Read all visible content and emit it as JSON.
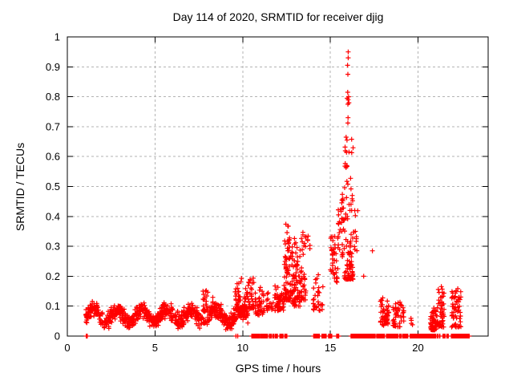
{
  "window": {
    "background": "#ffffff"
  },
  "chart_data": {
    "type": "scatter",
    "title": "Day 114 of 2020, SRMTID for receiver djig",
    "xlabel": "GPS time / hours",
    "ylabel": "SRMTID / TECUs",
    "xlim": [
      0,
      24
    ],
    "ylim": [
      0,
      1
    ],
    "xticks": [
      0,
      5,
      10,
      15,
      20
    ],
    "yticks": [
      0,
      0.1,
      0.2,
      0.3,
      0.4,
      0.5,
      0.6,
      0.7,
      0.8,
      0.9,
      1
    ],
    "grid": true,
    "legend": "none",
    "marker": "plus",
    "marker_color": "#ff0000",
    "axis_color": "#000000",
    "grid_color": "#b3b3b3",
    "seed": 114,
    "bands": [
      {
        "type": "wave",
        "t": [
          1.05,
          10.3
        ],
        "n": 800,
        "base": 0.068,
        "amp": 0.021,
        "freq": 4.5,
        "phase": 1.2,
        "noise": 0.026,
        "clamp": [
          0.022,
          0.135
        ]
      },
      {
        "type": "blob",
        "t": [
          7.7,
          8.3
        ],
        "n": 35,
        "y": [
          0.08,
          0.155
        ],
        "skew": 1.6
      },
      {
        "type": "blob",
        "t": [
          9.55,
          9.95
        ],
        "n": 35,
        "y": [
          0.08,
          0.2
        ],
        "skew": 2.0
      },
      {
        "type": "blob",
        "t": [
          10.05,
          10.3
        ],
        "n": 20,
        "y": [
          0.08,
          0.16
        ],
        "skew": 1.5
      },
      {
        "type": "blob",
        "t": [
          10.3,
          10.65
        ],
        "n": 35,
        "y": [
          0.085,
          0.195
        ],
        "skew": 1.6
      },
      {
        "type": "blob",
        "t": [
          10.7,
          11.25
        ],
        "n": 45,
        "y": [
          0.07,
          0.165
        ],
        "skew": 1.6
      },
      {
        "type": "blob",
        "t": [
          11.35,
          11.75
        ],
        "n": 18,
        "y": [
          0.085,
          0.145
        ],
        "skew": 1.3
      },
      {
        "type": "blob",
        "t": [
          11.8,
          12.35
        ],
        "n": 55,
        "y": [
          0.085,
          0.17
        ],
        "skew": 1.4
      },
      {
        "type": "blob",
        "t": [
          12.35,
          12.75
        ],
        "n": 90,
        "y": [
          0.12,
          0.375
        ],
        "skew": 2.2
      },
      {
        "type": "blob",
        "t": [
          12.8,
          13.3
        ],
        "n": 80,
        "y": [
          0.1,
          0.33
        ],
        "skew": 2.0
      },
      {
        "type": "blob",
        "t": [
          13.3,
          13.6
        ],
        "n": 35,
        "y": [
          0.12,
          0.35
        ],
        "skew": 2.2
      },
      {
        "type": "blob",
        "t": [
          13.55,
          13.85
        ],
        "n": 8,
        "y": [
          0.28,
          0.34
        ],
        "skew": 1.0
      },
      {
        "type": "blob",
        "t": [
          14.0,
          14.65
        ],
        "n": 30,
        "y": [
          0.085,
          0.205
        ],
        "skew": 1.8
      },
      {
        "type": "blob",
        "t": [
          15.0,
          15.45
        ],
        "n": 40,
        "y": [
          0.18,
          0.34
        ],
        "skew": 1.2
      },
      {
        "type": "blob",
        "t": [
          15.45,
          15.8
        ],
        "n": 30,
        "y": [
          0.26,
          0.48
        ],
        "skew": 1.2
      },
      {
        "type": "blob",
        "t": [
          15.8,
          16.3
        ],
        "n": 95,
        "y": [
          0.19,
          0.7
        ],
        "skew": 2.4
      },
      {
        "type": "blob",
        "t": [
          16.3,
          16.6
        ],
        "n": 12,
        "y": [
          0.27,
          0.42
        ],
        "skew": 1.2
      },
      {
        "type": "blob",
        "t": [
          17.85,
          18.35
        ],
        "n": 50,
        "y": [
          0.035,
          0.13
        ],
        "skew": 1.7
      },
      {
        "type": "blob",
        "t": [
          18.55,
          19.2
        ],
        "n": 45,
        "y": [
          0.03,
          0.115
        ],
        "skew": 1.7
      },
      {
        "type": "blob",
        "t": [
          19.55,
          19.7
        ],
        "n": 4,
        "y": [
          0.035,
          0.06
        ],
        "skew": 1.0
      },
      {
        "type": "blob",
        "t": [
          20.7,
          21.1
        ],
        "n": 55,
        "y": [
          0.02,
          0.095
        ],
        "skew": 1.8
      },
      {
        "type": "blob",
        "t": [
          21.1,
          21.5
        ],
        "n": 50,
        "y": [
          0.03,
          0.17
        ],
        "skew": 2.0
      },
      {
        "type": "blob",
        "t": [
          21.9,
          22.45
        ],
        "n": 60,
        "y": [
          0.03,
          0.16
        ],
        "skew": 2.0
      }
    ],
    "extra_points": [
      [
        16.02,
        0.95
      ],
      [
        16.02,
        0.93
      ],
      [
        15.98,
        0.905
      ],
      [
        16.0,
        0.875
      ],
      [
        15.99,
        0.815
      ],
      [
        16.04,
        0.8
      ],
      [
        15.96,
        0.795
      ],
      [
        16.02,
        0.79
      ],
      [
        16.06,
        0.78
      ],
      [
        16.0,
        0.775
      ],
      [
        16.01,
        0.73
      ],
      [
        16.0,
        0.712
      ],
      [
        15.9,
        0.665
      ],
      [
        15.95,
        0.655
      ],
      [
        16.9,
        0.2
      ],
      [
        17.4,
        0.285
      ]
    ],
    "zero_step": 0.03,
    "zero_runs": [
      [
        1.08,
        1.14
      ],
      [
        9.62,
        9.64
      ],
      [
        9.72,
        9.74
      ],
      [
        10.52,
        10.98
      ],
      [
        11.03,
        11.42
      ],
      [
        11.52,
        11.66
      ],
      [
        11.72,
        11.78
      ],
      [
        11.86,
        11.98
      ],
      [
        12.12,
        12.32
      ],
      [
        12.4,
        12.52
      ],
      [
        14.05,
        14.38
      ],
      [
        14.52,
        14.76
      ],
      [
        14.9,
        15.1
      ],
      [
        15.36,
        15.5
      ],
      [
        16.18,
        17.56
      ],
      [
        17.64,
        18.1
      ],
      [
        18.2,
        18.86
      ],
      [
        18.95,
        19.05
      ],
      [
        19.12,
        19.42
      ],
      [
        19.55,
        21.04
      ],
      [
        21.1,
        21.14
      ],
      [
        21.22,
        21.26
      ],
      [
        21.42,
        21.56
      ],
      [
        21.64,
        21.74
      ],
      [
        21.9,
        22.94
      ]
    ]
  }
}
